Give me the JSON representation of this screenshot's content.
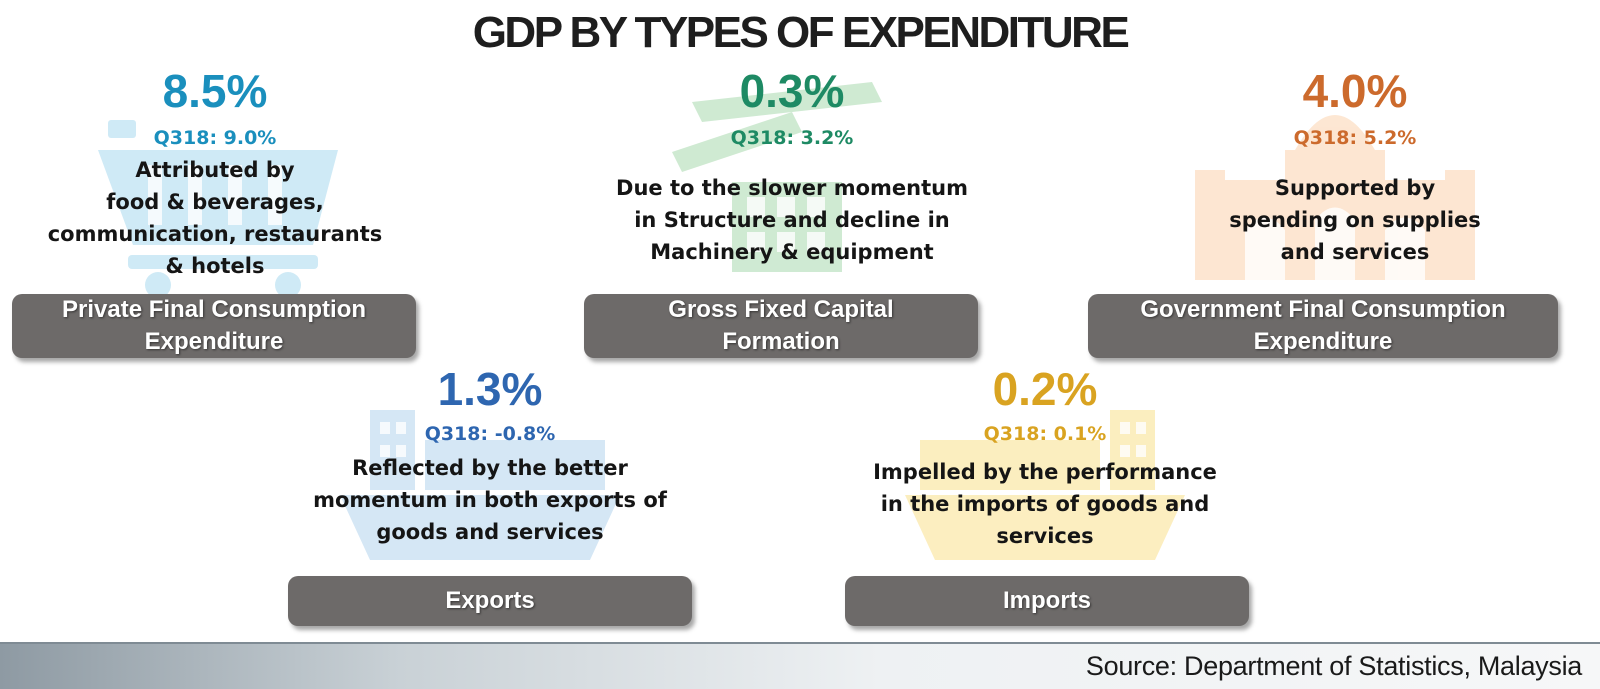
{
  "title": "GDP BY TYPES OF EXPENDITURE",
  "colors": {
    "private": "#1a8fbd",
    "gfcf": "#1e8a64",
    "government": "#cc6a2c",
    "exports": "#2e66b0",
    "imports": "#d9a321",
    "label_bg": "#6d6a69"
  },
  "panels": [
    {
      "key": "private",
      "value": "8.5%",
      "prev": "Q318: 9.0%",
      "description": [
        "Attributed by",
        "food & beverages,",
        "communication, restaurants",
        "& hotels"
      ],
      "label": [
        "Private Final Consumption",
        "Expenditure"
      ],
      "icon": "shopping-cart-icon"
    },
    {
      "key": "gfcf",
      "value": "0.3%",
      "prev": "Q318: 3.2%",
      "description": [
        "Due to the slower momentum",
        "in Structure  and decline in",
        "Machinery & equipment"
      ],
      "label": [
        "Gross Fixed Capital",
        "Formation"
      ],
      "icon": "construction-icon"
    },
    {
      "key": "government",
      "value": "4.0%",
      "prev": "Q318: 5.2%",
      "description": [
        "Supported by",
        "spending on supplies",
        "and services"
      ],
      "label": [
        "Government  Final Consumption",
        "Expenditure"
      ],
      "icon": "government-building-icon"
    },
    {
      "key": "exports",
      "value": "1.3%",
      "prev": "Q318: -0.8%",
      "description": [
        "Reflected by the better",
        "momentum in both exports of",
        "goods and services"
      ],
      "label": [
        "Exports"
      ],
      "icon": "cargo-ship-icon"
    },
    {
      "key": "imports",
      "value": "0.2%",
      "prev": "Q318: 0.1%",
      "description": [
        "Impelled by the performance",
        "in the imports of goods and",
        "services"
      ],
      "label": [
        "Imports"
      ],
      "icon": "cargo-ship-icon"
    }
  ],
  "source": "Source: Department of Statistics, Malaysia"
}
